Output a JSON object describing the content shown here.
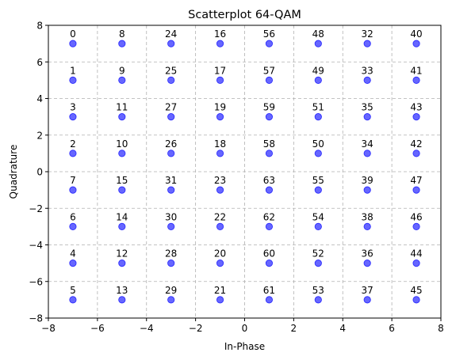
{
  "chart_data": {
    "type": "scatter",
    "title": "Scatterplot 64-QAM",
    "xlabel": "In-Phase",
    "ylabel": "Quadrature",
    "xlim": [
      -8,
      8
    ],
    "ylim": [
      -8,
      8
    ],
    "xticks": [
      -8,
      -6,
      -4,
      -2,
      0,
      2,
      4,
      6,
      8
    ],
    "yticks": [
      -8,
      -6,
      -4,
      -2,
      0,
      2,
      4,
      6,
      8
    ],
    "grid": true,
    "marker_color": "#0000ff",
    "marker_alpha": 0.6,
    "columns_x": [
      -7,
      -5,
      -3,
      -1,
      1,
      3,
      5,
      7
    ],
    "rows_y": [
      7,
      5,
      3,
      1,
      -1,
      -3,
      -5,
      -7
    ],
    "labels": [
      [
        0,
        8,
        24,
        16,
        56,
        48,
        32,
        40
      ],
      [
        1,
        9,
        25,
        17,
        57,
        49,
        33,
        41
      ],
      [
        3,
        11,
        27,
        19,
        59,
        51,
        35,
        43
      ],
      [
        2,
        10,
        26,
        18,
        58,
        50,
        34,
        42
      ],
      [
        7,
        15,
        31,
        23,
        63,
        55,
        39,
        47
      ],
      [
        6,
        14,
        30,
        22,
        62,
        54,
        38,
        46
      ],
      [
        4,
        12,
        28,
        20,
        60,
        52,
        36,
        44
      ],
      [
        5,
        13,
        29,
        21,
        61,
        53,
        37,
        45
      ]
    ]
  }
}
